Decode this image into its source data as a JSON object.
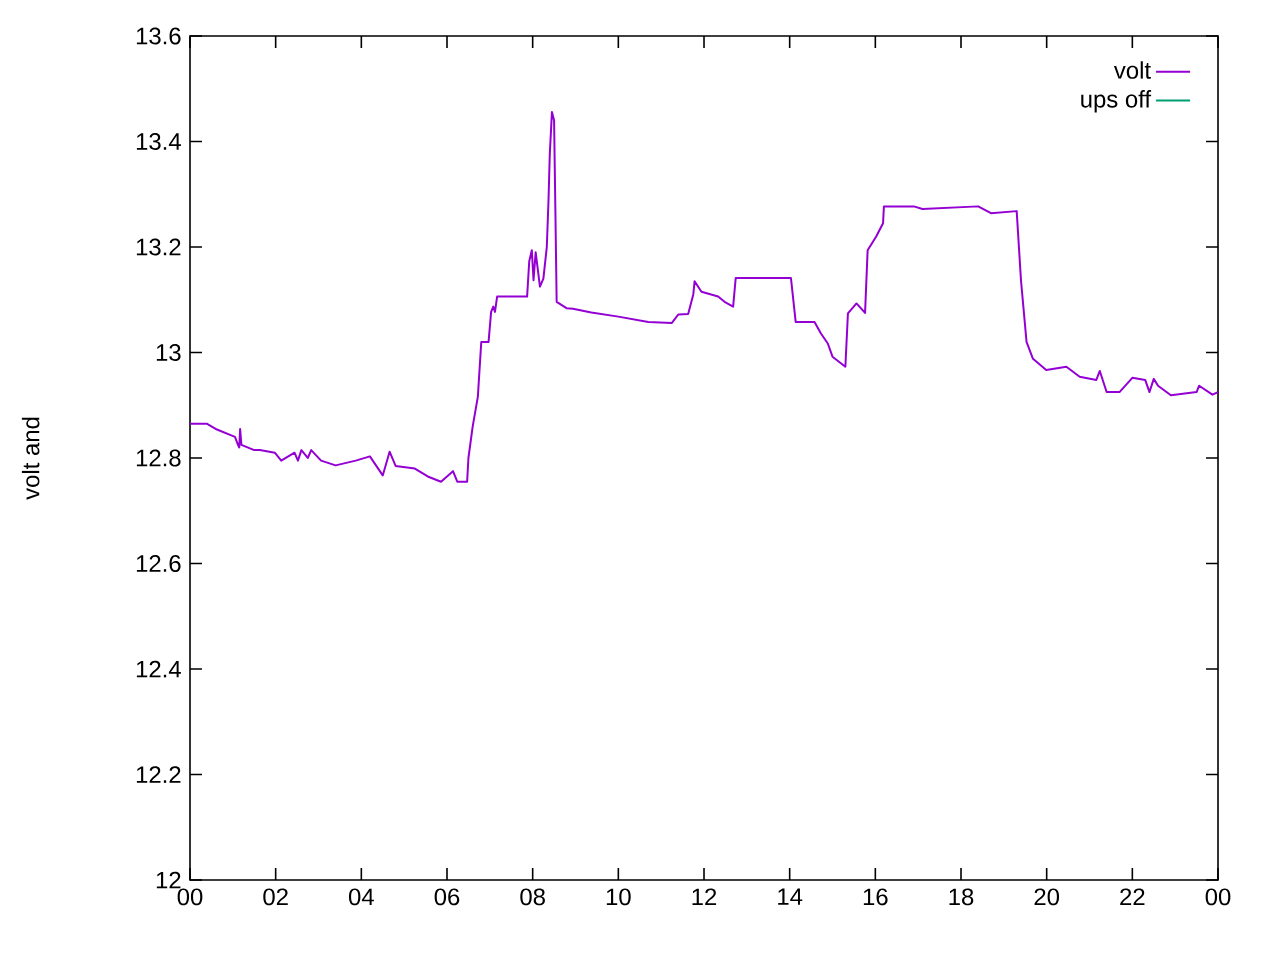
{
  "chart_data": {
    "type": "line",
    "ylabel": "volt and",
    "xlim": [
      0,
      24
    ],
    "ylim": [
      12,
      13.6
    ],
    "xticks": [
      {
        "value": 0,
        "label": "00"
      },
      {
        "value": 2,
        "label": "02"
      },
      {
        "value": 4,
        "label": "04"
      },
      {
        "value": 6,
        "label": "06"
      },
      {
        "value": 8,
        "label": "08"
      },
      {
        "value": 10,
        "label": "10"
      },
      {
        "value": 12,
        "label": "12"
      },
      {
        "value": 14,
        "label": "14"
      },
      {
        "value": 16,
        "label": "16"
      },
      {
        "value": 18,
        "label": "18"
      },
      {
        "value": 20,
        "label": "20"
      },
      {
        "value": 22,
        "label": "22"
      },
      {
        "value": 24,
        "label": "00"
      }
    ],
    "yticks": [
      {
        "value": 12,
        "label": "12"
      },
      {
        "value": 12.2,
        "label": "12.2"
      },
      {
        "value": 12.4,
        "label": "12.4"
      },
      {
        "value": 12.6,
        "label": "12.6"
      },
      {
        "value": 12.8,
        "label": "12.8"
      },
      {
        "value": 13,
        "label": "13"
      },
      {
        "value": 13.2,
        "label": "13.2"
      },
      {
        "value": 13.4,
        "label": "13.4"
      },
      {
        "value": 13.6,
        "label": "13.6"
      }
    ],
    "legend": "top right",
    "grid": false,
    "marker": "none",
    "line_style": "solid",
    "series": [
      {
        "name": "volt",
        "color": "#9400d3",
        "x": [
          0,
          0.39,
          0.6,
          1.05,
          1.12,
          1.15,
          1.17,
          1.2,
          1.5,
          1.63,
          1.98,
          2.13,
          2.44,
          2.52,
          2.6,
          2.75,
          2.83,
          3.06,
          3.4,
          3.87,
          4.2,
          4.5,
          4.66,
          4.8,
          5.25,
          5.55,
          5.86,
          6.14,
          6.24,
          6.47,
          6.5,
          6.6,
          6.72,
          6.8,
          6.97,
          7.03,
          7.08,
          7.12,
          7.17,
          7.87,
          7.92,
          7.98,
          8.02,
          8.07,
          8.17,
          8.25,
          8.33,
          8.37,
          8.4,
          8.45,
          8.5,
          8.53,
          8.56,
          8.79,
          8.94,
          9.37,
          10.0,
          10.7,
          11.25,
          11.4,
          11.63,
          11.75,
          11.78,
          11.94,
          12.33,
          12.48,
          12.68,
          12.74,
          14.03,
          14.14,
          14.58,
          14.73,
          14.89,
          15.0,
          15.3,
          15.36,
          15.56,
          15.76,
          15.82,
          16.02,
          16.18,
          16.2,
          16.9,
          17.1,
          18.4,
          18.7,
          19.3,
          19.4,
          19.53,
          19.68,
          19.99,
          20.46,
          20.77,
          21.16,
          21.24,
          21.4,
          21.7,
          22.0,
          22.3,
          22.4,
          22.5,
          22.6,
          22.9,
          23.5,
          23.56,
          23.87,
          24
        ],
        "values": [
          12.865,
          12.865,
          12.855,
          12.84,
          12.825,
          12.82,
          12.855,
          12.825,
          12.815,
          12.815,
          12.81,
          12.795,
          12.81,
          12.795,
          12.815,
          12.8,
          12.815,
          12.795,
          12.786,
          12.795,
          12.803,
          12.767,
          12.812,
          12.785,
          12.78,
          12.765,
          12.755,
          12.775,
          12.755,
          12.755,
          12.8,
          12.86,
          12.916,
          13.02,
          13.02,
          13.077,
          13.087,
          13.077,
          13.106,
          13.106,
          13.173,
          13.194,
          13.137,
          13.19,
          13.125,
          13.14,
          13.2,
          13.289,
          13.377,
          13.456,
          13.44,
          13.27,
          13.096,
          13.084,
          13.083,
          13.076,
          13.068,
          13.058,
          13.056,
          13.072,
          13.073,
          13.11,
          13.135,
          13.115,
          13.106,
          13.096,
          13.087,
          13.141,
          13.141,
          13.058,
          13.058,
          13.036,
          13.017,
          12.992,
          12.973,
          13.074,
          13.093,
          13.075,
          13.194,
          13.22,
          13.245,
          13.277,
          13.277,
          13.272,
          13.277,
          13.264,
          13.268,
          13.137,
          13.02,
          12.988,
          12.967,
          12.973,
          12.954,
          12.948,
          12.965,
          12.925,
          12.925,
          12.952,
          12.948,
          12.925,
          12.95,
          12.937,
          12.919,
          12.925,
          12.937,
          12.92,
          12.925
        ]
      },
      {
        "name": "ups off",
        "color": "#009e73"
      }
    ]
  }
}
